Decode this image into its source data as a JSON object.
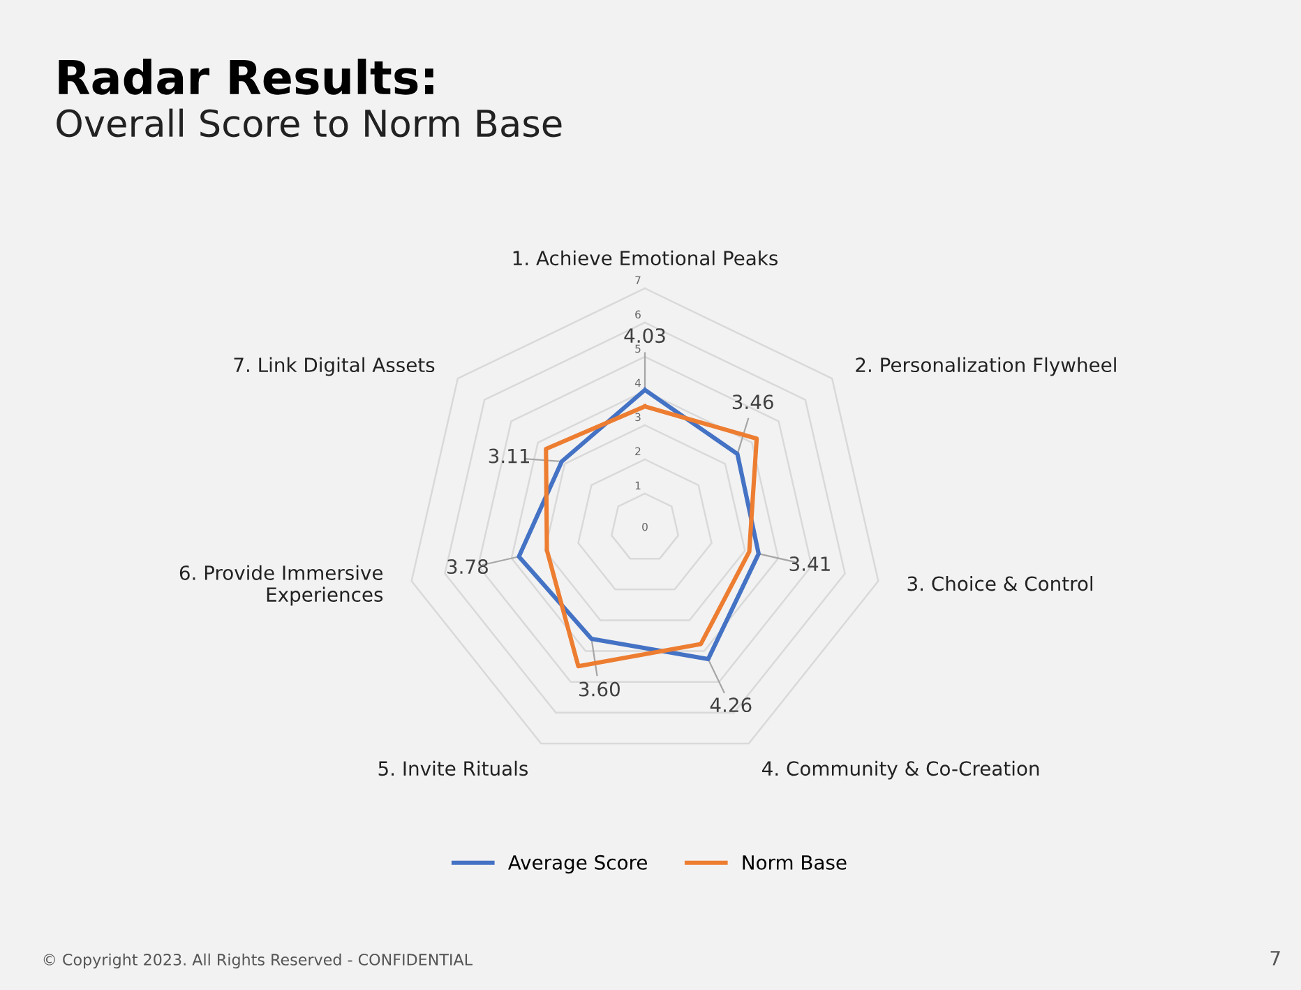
{
  "chart_data": {
    "type": "radar",
    "title": "Radar Results:",
    "subtitle": "Overall Score to Norm Base",
    "categories": [
      "1. Achieve Emotional Peaks",
      "2. Personalization Flywheel",
      "3. Choice & Control",
      "4. Community & Co-Creation",
      "5. Invite Rituals",
      "6. Provide Immersive\nExperiences",
      "7. Link Digital Assets"
    ],
    "series": [
      {
        "name": "Average Score",
        "color": "#4472c4",
        "values": [
          4.03,
          3.46,
          3.41,
          4.26,
          3.6,
          3.78,
          3.11
        ],
        "value_labels": [
          "4.03",
          "3.46",
          "3.41",
          "4.26",
          "3.60",
          "3.78",
          "3.11"
        ]
      },
      {
        "name": "Norm Base",
        "color": "#ed7d31",
        "values": [
          3.55,
          4.18,
          3.13,
          3.77,
          4.49,
          2.94,
          3.7
        ]
      }
    ],
    "ylim": [
      0,
      7
    ],
    "yticks": [
      0,
      1,
      2,
      3,
      4,
      5,
      6,
      7
    ],
    "grid": true,
    "legend": "bottom",
    "marker": "none",
    "annotations": [
      "© Copyright 2023. All Rights Reserved - CONFIDENTIAL",
      "7"
    ]
  }
}
